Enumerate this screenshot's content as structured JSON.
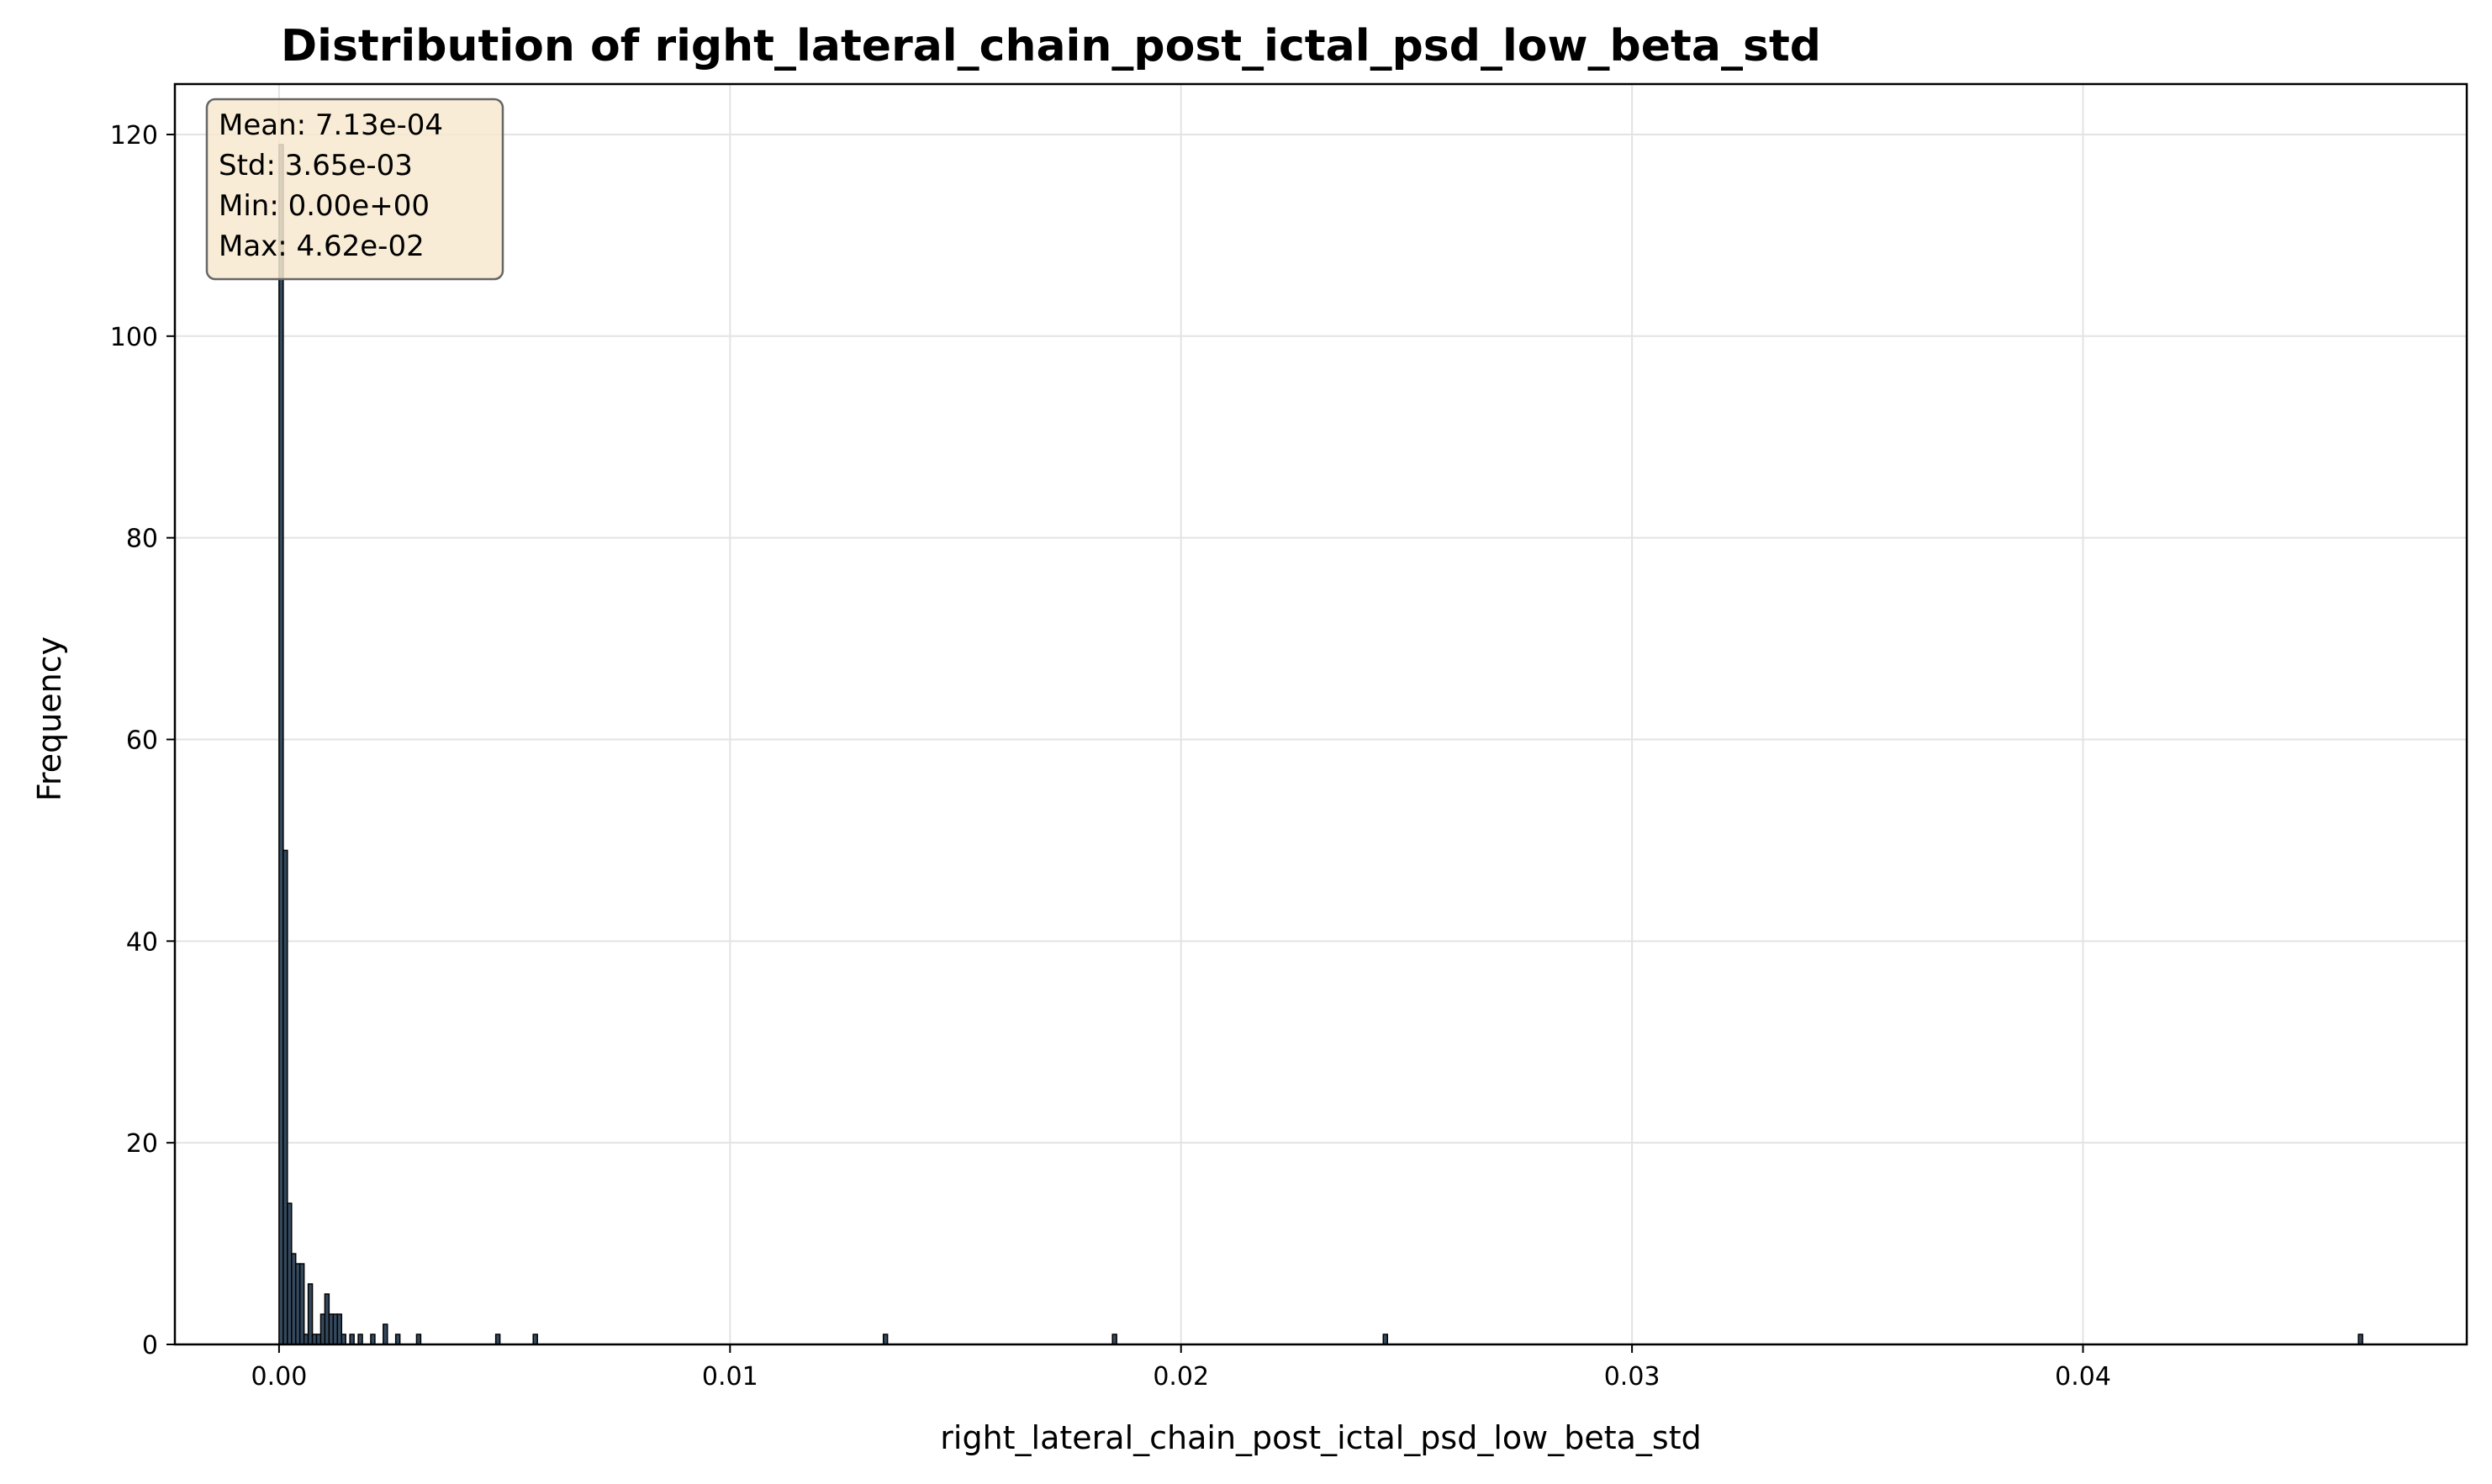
{
  "chart_data": {
    "type": "bar",
    "title": "Distribution of right_lateral_chain_post_ictal_psd_low_beta_std",
    "xlabel": "right_lateral_chain_post_ictal_psd_low_beta_std",
    "ylabel": "Frequency",
    "xlim": [
      -0.00231,
      0.04851
    ],
    "ylim": [
      0,
      125
    ],
    "xticks": [
      0.0,
      0.01,
      0.02,
      0.03,
      0.04
    ],
    "xtick_labels": [
      "0.00",
      "0.01",
      "0.02",
      "0.03",
      "0.04"
    ],
    "yticks": [
      0,
      20,
      40,
      60,
      80,
      100,
      120
    ],
    "ytick_labels": [
      "0",
      "20",
      "40",
      "60",
      "80",
      "100",
      "120"
    ],
    "grid": true,
    "bin_width": 9.24e-05,
    "bars": [
      {
        "x": 0.0,
        "count": 119
      },
      {
        "x": 9.24e-05,
        "count": 49
      },
      {
        "x": 0.000185,
        "count": 14
      },
      {
        "x": 0.000277,
        "count": 9
      },
      {
        "x": 0.00037,
        "count": 8
      },
      {
        "x": 0.000462,
        "count": 8
      },
      {
        "x": 0.000554,
        "count": 1
      },
      {
        "x": 0.000647,
        "count": 6
      },
      {
        "x": 0.000739,
        "count": 1
      },
      {
        "x": 0.000832,
        "count": 1
      },
      {
        "x": 0.000924,
        "count": 3
      },
      {
        "x": 0.001016,
        "count": 5
      },
      {
        "x": 0.001109,
        "count": 3
      },
      {
        "x": 0.001201,
        "count": 3
      },
      {
        "x": 0.001294,
        "count": 3
      },
      {
        "x": 0.001386,
        "count": 1
      },
      {
        "x": 0.001571,
        "count": 1
      },
      {
        "x": 0.001756,
        "count": 1
      },
      {
        "x": 0.002033,
        "count": 1
      },
      {
        "x": 0.00231,
        "count": 2
      },
      {
        "x": 0.002587,
        "count": 1
      },
      {
        "x": 0.003049,
        "count": 1
      },
      {
        "x": 0.004805,
        "count": 1
      },
      {
        "x": 0.005636,
        "count": 1
      },
      {
        "x": 0.0134,
        "count": 1
      },
      {
        "x": 0.01848,
        "count": 1
      },
      {
        "x": 0.024485,
        "count": 1
      },
      {
        "x": 0.046108,
        "count": 1
      }
    ],
    "stats_box": {
      "lines": [
        "Mean: 7.13e-04",
        "Std: 3.65e-03",
        "Min: 0.00e+00",
        "Max: 4.62e-02"
      ],
      "placement": "top-left",
      "background": "#f7e9cf",
      "border": "#666666"
    },
    "colors": {
      "bar_fill": "#34495e",
      "bar_edge": "#000000",
      "grid": "#e3e3e3"
    }
  }
}
